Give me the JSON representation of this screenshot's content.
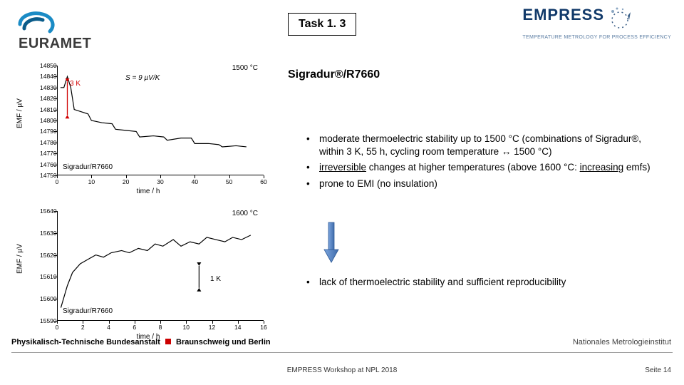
{
  "logos": {
    "euramet": {
      "text": "EURAMET",
      "swirl_colors": [
        "#1a8bc5",
        "#0a5c8a"
      ]
    },
    "empress": {
      "text": "EMPRESS",
      "tagline": "TEMPERATURE METROLOGY FOR PROCESS EFFICIENCY",
      "color": "#123a6a",
      "accent": "#5b7da3"
    }
  },
  "task_box": "Task 1. 3",
  "heading": "Sigradur®/R7660",
  "bullets": [
    {
      "type": "plain",
      "text": "moderate thermoelectric stability up to 1500 °C (combinations of Sigradur®, within 3 K, 55 h, cycling room temperature ↔ 1500 °C)"
    },
    {
      "type": "rich",
      "pre": "",
      "u1": "irreversible",
      "mid": " changes at higher temperatures (above 1600 °C: ",
      "u2": "increasing",
      "post": " emfs)"
    },
    {
      "type": "plain",
      "text": "prone to EMI (no insulation)"
    }
  ],
  "arrow": {
    "fill": "#5b8bd4",
    "stroke": "#3b6aa8"
  },
  "conclusion": "lack of thermoelectric stability and sufficient reproducibility",
  "chart_common": {
    "ylabel": "EMF / µV",
    "xlabel": "time / h",
    "axis_color": "#000000",
    "line_color": "#000000",
    "anno_red": "#d00000",
    "font_size_pt": 9
  },
  "chart1": {
    "title_anno": "1500 °C",
    "yticks": [
      14750,
      14760,
      14770,
      14780,
      14790,
      14800,
      14810,
      14820,
      14830,
      14840,
      14850
    ],
    "ylim": [
      14750,
      14850
    ],
    "xticks": [
      0,
      10,
      20,
      30,
      40,
      50,
      60
    ],
    "xlim": [
      0,
      60
    ],
    "label_anno": "Sigradur/R7660",
    "red_label": "3 K",
    "s_label": "S = 9 µV/K",
    "series": [
      {
        "x": 1,
        "y": 14830
      },
      {
        "x": 2,
        "y": 14830
      },
      {
        "x": 3,
        "y": 14840
      },
      {
        "x": 4,
        "y": 14830
      },
      {
        "x": 5,
        "y": 14810
      },
      {
        "x": 7,
        "y": 14808
      },
      {
        "x": 9,
        "y": 14806
      },
      {
        "x": 10,
        "y": 14800
      },
      {
        "x": 13,
        "y": 14798
      },
      {
        "x": 16,
        "y": 14797
      },
      {
        "x": 17,
        "y": 14792
      },
      {
        "x": 20,
        "y": 14791
      },
      {
        "x": 23,
        "y": 14790
      },
      {
        "x": 24,
        "y": 14785
      },
      {
        "x": 28,
        "y": 14786
      },
      {
        "x": 31,
        "y": 14785
      },
      {
        "x": 32,
        "y": 14782
      },
      {
        "x": 36,
        "y": 14784
      },
      {
        "x": 39,
        "y": 14784
      },
      {
        "x": 40,
        "y": 14779
      },
      {
        "x": 44,
        "y": 14779
      },
      {
        "x": 47,
        "y": 14778
      },
      {
        "x": 48,
        "y": 14776
      },
      {
        "x": 52,
        "y": 14777
      },
      {
        "x": 55,
        "y": 14776
      }
    ]
  },
  "chart2": {
    "title_anno": "1600 °C",
    "yticks": [
      15590,
      15600,
      15610,
      15620,
      15630,
      15640
    ],
    "ylim": [
      15590,
      15640
    ],
    "xticks": [
      0,
      2,
      4,
      6,
      8,
      10,
      12,
      14,
      16
    ],
    "xlim": [
      0,
      16
    ],
    "label_anno": "Sigradur/R7660",
    "onek_label": "1 K",
    "series": [
      {
        "x": 0.3,
        "y": 15596
      },
      {
        "x": 0.8,
        "y": 15606
      },
      {
        "x": 1.2,
        "y": 15612
      },
      {
        "x": 1.8,
        "y": 15616
      },
      {
        "x": 2.4,
        "y": 15618
      },
      {
        "x": 3.0,
        "y": 15620
      },
      {
        "x": 3.6,
        "y": 15619
      },
      {
        "x": 4.2,
        "y": 15621
      },
      {
        "x": 5.0,
        "y": 15622
      },
      {
        "x": 5.6,
        "y": 15621
      },
      {
        "x": 6.3,
        "y": 15623
      },
      {
        "x": 7.0,
        "y": 15622
      },
      {
        "x": 7.6,
        "y": 15625
      },
      {
        "x": 8.2,
        "y": 15624
      },
      {
        "x": 9.0,
        "y": 15627
      },
      {
        "x": 9.6,
        "y": 15624
      },
      {
        "x": 10.3,
        "y": 15626
      },
      {
        "x": 11.0,
        "y": 15625
      },
      {
        "x": 11.6,
        "y": 15628
      },
      {
        "x": 12.3,
        "y": 15627
      },
      {
        "x": 13.0,
        "y": 15626
      },
      {
        "x": 13.6,
        "y": 15628
      },
      {
        "x": 14.3,
        "y": 15627
      },
      {
        "x": 15.0,
        "y": 15629
      }
    ]
  },
  "footer": {
    "left_a": "Physikalisch-Technische Bundesanstalt",
    "left_b": "Braunschweig und Berlin",
    "right_top": "Nationales Metrologieinstitut",
    "center": "EMPRESS Workshop at NPL 2018",
    "right": "Seite 14"
  }
}
